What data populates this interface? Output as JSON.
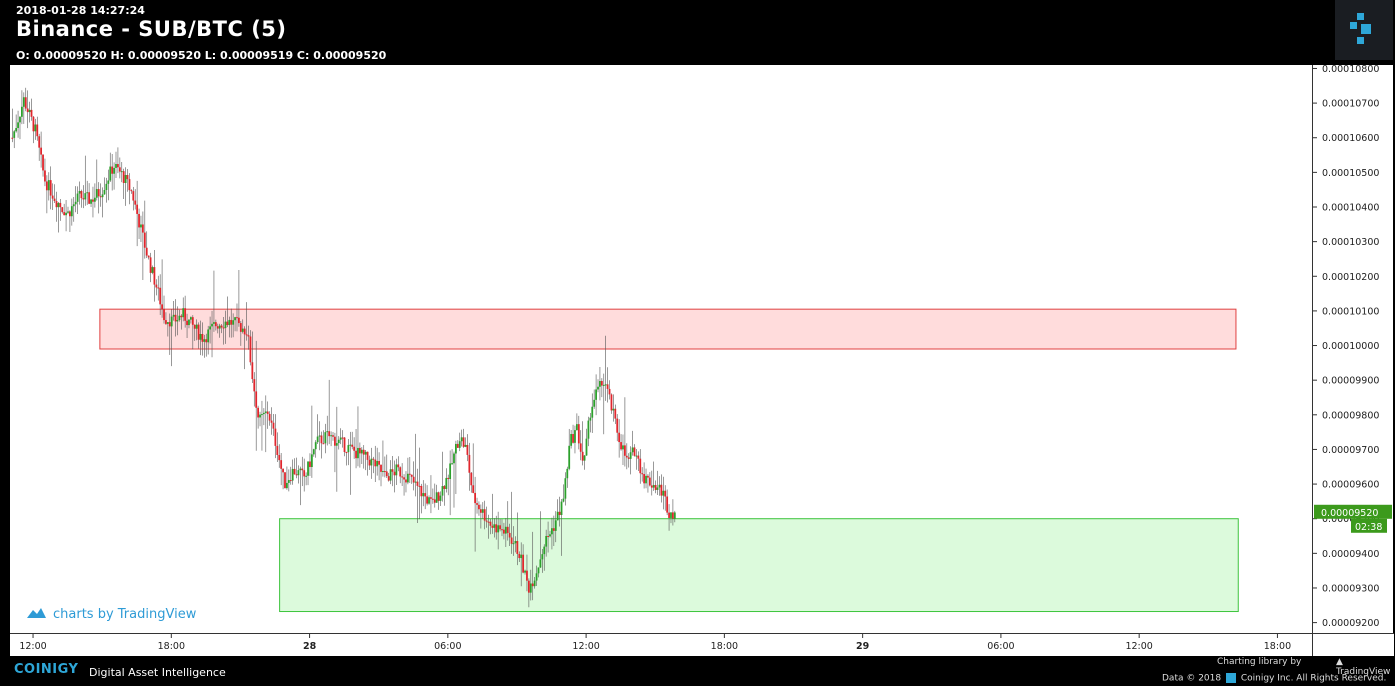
{
  "header": {
    "timestamp": "2018-01-28 14:27:24",
    "title": "Binance - SUB/BTC (5)",
    "ohlc": "O: 0.00009520 H: 0.00009520 L: 0.00009519 C: 0.00009520"
  },
  "footer": {
    "brand": "COINIGY",
    "tagline": "Digital Asset Intelligence",
    "charting_by": "Charting library by",
    "tv_name": "TradingView",
    "data_line": "Data © 2018",
    "rights": "Coinigy Inc. All Rights Reserved."
  },
  "watermark": "charts by TradingView",
  "colors": {
    "up": "#2ca02c",
    "down": "#e0262d",
    "resistance_fill": "#ffdcdc",
    "resistance_border": "#e04040",
    "support_fill": "#dcfadc",
    "support_border": "#3cc43c",
    "price_label": "#3c9a1c"
  },
  "chart_data": {
    "type": "candlestick",
    "y_ticks": [
      "0.00010800",
      "0.00010700",
      "0.00010600",
      "0.00010500",
      "0.00010400",
      "0.00010300",
      "0.00010200",
      "0.00010100",
      "0.00010000",
      "0.00009900",
      "0.00009800",
      "0.00009700",
      "0.00009600",
      "0.00009500",
      "0.00009400",
      "0.00009300",
      "0.00009200"
    ],
    "ylim": [
      9.17e-05,
      0.0001081
    ],
    "x_ticks": [
      "12:00",
      "18:00",
      "28",
      "06:00",
      "12:00",
      "18:00",
      "29",
      "06:00",
      "12:00",
      "18:00"
    ],
    "x_tick_hours": [
      12,
      18,
      24,
      30,
      36,
      42,
      48,
      54,
      60,
      66
    ],
    "x_range_hours": [
      11,
      67.5
    ],
    "last_price": "0.00009520",
    "countdown": "02:38",
    "zones": [
      {
        "name": "resistance",
        "y_low": 9.99e-05,
        "y_high": 0.00010105,
        "x_start_hour": 14.9,
        "x_end_hour": 64.2
      },
      {
        "name": "support",
        "y_low": 9.232e-05,
        "y_high": 9.5e-05,
        "x_start_hour": 22.7,
        "x_end_hour": 64.3
      }
    ],
    "price_path": [
      [
        11.1,
        0.000106
      ],
      [
        11.6,
        0.0001071
      ],
      [
        12.1,
        0.0001062
      ],
      [
        12.5,
        0.0001048
      ],
      [
        13.0,
        0.0001042
      ],
      [
        13.5,
        0.0001038
      ],
      [
        14.0,
        0.0001043
      ],
      [
        14.5,
        0.0001042
      ],
      [
        15.0,
        0.0001045
      ],
      [
        15.5,
        0.0001052
      ],
      [
        15.9,
        0.0001049
      ],
      [
        16.3,
        0.0001044
      ],
      [
        16.7,
        0.0001033
      ],
      [
        17.0,
        0.0001025
      ],
      [
        17.4,
        0.0001016
      ],
      [
        17.7,
        0.0001008
      ],
      [
        18.1,
        0.0001007
      ],
      [
        18.5,
        0.0001009
      ],
      [
        19.0,
        0.0001005
      ],
      [
        19.4,
        0.0001002
      ],
      [
        19.9,
        0.0001006
      ],
      [
        20.4,
        0.0001007
      ],
      [
        20.9,
        0.0001006
      ],
      [
        21.3,
        0.0001004
      ],
      [
        21.5,
        9.92e-05
      ],
      [
        21.8,
        9.78e-05
      ],
      [
        22.2,
        9.81e-05
      ],
      [
        22.6,
        9.7e-05
      ],
      [
        22.9,
        9.6e-05
      ],
      [
        23.3,
        9.64e-05
      ],
      [
        23.8,
        9.62e-05
      ],
      [
        24.3,
        9.72e-05
      ],
      [
        24.8,
        9.74e-05
      ],
      [
        25.3,
        9.72e-05
      ],
      [
        25.8,
        9.7e-05
      ],
      [
        26.3,
        9.68e-05
      ],
      [
        26.8,
        9.66e-05
      ],
      [
        27.3,
        9.62e-05
      ],
      [
        27.8,
        9.64e-05
      ],
      [
        28.3,
        9.62e-05
      ],
      [
        28.8,
        9.58e-05
      ],
      [
        29.3,
        9.54e-05
      ],
      [
        29.7,
        9.58e-05
      ],
      [
        30.1,
        9.64e-05
      ],
      [
        30.5,
        9.74e-05
      ],
      [
        30.8,
        9.7e-05
      ],
      [
        31.1,
        9.56e-05
      ],
      [
        31.5,
        9.52e-05
      ],
      [
        31.9,
        9.48e-05
      ],
      [
        32.3,
        9.47e-05
      ],
      [
        32.7,
        9.45e-05
      ],
      [
        33.1,
        9.4e-05
      ],
      [
        33.5,
        9.3e-05
      ],
      [
        33.8,
        9.34e-05
      ],
      [
        34.2,
        9.43e-05
      ],
      [
        34.6,
        9.48e-05
      ],
      [
        35.0,
        9.55e-05
      ],
      [
        35.3,
        9.72e-05
      ],
      [
        35.6,
        9.76e-05
      ],
      [
        35.9,
        9.65e-05
      ],
      [
        36.2,
        9.82e-05
      ],
      [
        36.5,
        9.87e-05
      ],
      [
        36.8,
        9.9e-05
      ],
      [
        37.1,
        9.82e-05
      ],
      [
        37.4,
        9.74e-05
      ],
      [
        37.8,
        9.66e-05
      ],
      [
        38.1,
        9.7e-05
      ],
      [
        38.5,
        9.62e-05
      ],
      [
        38.9,
        9.6e-05
      ],
      [
        39.3,
        9.58e-05
      ],
      [
        39.6,
        9.52e-05
      ],
      [
        39.9,
        9.52e-05
      ]
    ]
  }
}
